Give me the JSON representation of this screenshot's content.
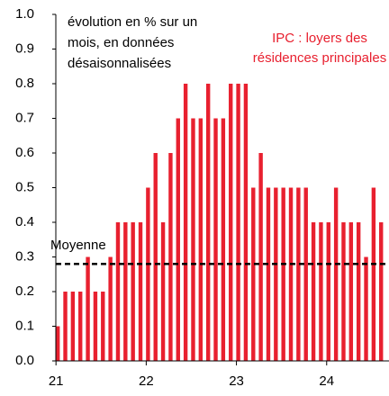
{
  "chart_data": {
    "type": "bar",
    "annotation_lines": [
      "évolution en % sur un",
      "mois, en données",
      "désaisonnalisées"
    ],
    "series_label_lines": [
      "IPC : loyers des",
      "résidences principales"
    ],
    "color": "#e8202f",
    "categories": [
      "21",
      null,
      null,
      null,
      null,
      null,
      null,
      null,
      null,
      null,
      null,
      null,
      "22",
      null,
      null,
      null,
      null,
      null,
      null,
      null,
      null,
      null,
      null,
      null,
      "23",
      null,
      null,
      null,
      null,
      null,
      null,
      null,
      null,
      null,
      null,
      null,
      "24",
      null,
      null,
      null,
      null,
      null,
      null,
      null
    ],
    "values": [
      0.1,
      0.2,
      0.2,
      0.2,
      0.3,
      0.2,
      0.2,
      0.3,
      0.4,
      0.4,
      0.4,
      0.4,
      0.5,
      0.6,
      0.4,
      0.6,
      0.7,
      0.8,
      0.7,
      0.7,
      0.8,
      0.7,
      0.7,
      0.8,
      0.8,
      0.8,
      0.5,
      0.6,
      0.5,
      0.5,
      0.5,
      0.5,
      0.5,
      0.5,
      0.4,
      0.4,
      0.4,
      0.5,
      0.4,
      0.4,
      0.4,
      0.3,
      0.5,
      0.4
    ],
    "mean": {
      "label": "Moyenne",
      "value": 0.28
    },
    "ylim": [
      0,
      1
    ],
    "yticks": [
      {
        "value": 0,
        "label": "0.0"
      },
      0.1,
      0.2,
      0.3,
      0.4,
      0.5,
      0.6,
      0.7,
      0.8,
      0.9,
      {
        "value": 1,
        "label": "1.0"
      }
    ]
  }
}
